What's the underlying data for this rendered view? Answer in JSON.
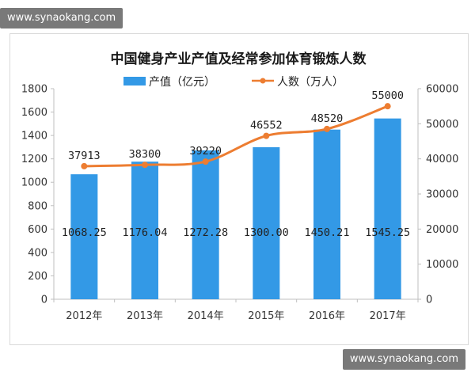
{
  "watermark": {
    "top": "www.synaokang.com",
    "bottom": "www.synaokang.com"
  },
  "chart_data": {
    "type": "bar+line",
    "title": "中国健身产业产值及经常参加体育锻炼人数",
    "categories": [
      "2012年",
      "2013年",
      "2014年",
      "2015年",
      "2016年",
      "2017年"
    ],
    "series": [
      {
        "name": "产值（亿元）",
        "type": "bar",
        "axis": "left",
        "color": "#3399e6",
        "values": [
          1068.25,
          1176.04,
          1272.28,
          1300.0,
          1450.21,
          1545.25
        ],
        "labels": [
          "1068.25",
          "1176.04",
          "1272.28",
          "1300.00",
          "1450.21",
          "1545.25"
        ]
      },
      {
        "name": "人数（万人）",
        "type": "line",
        "axis": "right",
        "color": "#ed7d31",
        "values": [
          37913,
          38300,
          39220,
          46552,
          48520,
          55000
        ],
        "labels": [
          "37913",
          "38300",
          "39220",
          "46552",
          "48520",
          "55000"
        ]
      }
    ],
    "y_left": {
      "min": 0,
      "max": 1800,
      "step": 200,
      "ticks": [
        "0",
        "200",
        "400",
        "600",
        "800",
        "1000",
        "1200",
        "1400",
        "1600",
        "1800"
      ]
    },
    "y_right": {
      "min": 0,
      "max": 60000,
      "step": 10000,
      "ticks": [
        "0",
        "10000",
        "20000",
        "30000",
        "40000",
        "50000",
        "60000"
      ]
    },
    "grid": false,
    "legend_position": "top"
  }
}
